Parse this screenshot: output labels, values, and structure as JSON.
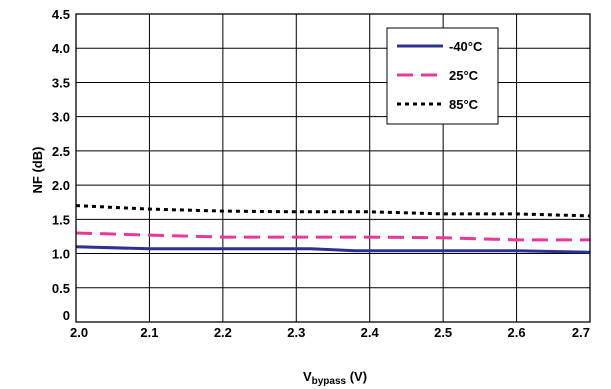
{
  "chart_data": {
    "type": "line",
    "title": "",
    "xlabel": {
      "main": "V",
      "sub": "bypass",
      "suffix": " (V)"
    },
    "ylabel": "NF (dB)",
    "xlim": [
      2.0,
      2.7
    ],
    "ylim": [
      0,
      4.5
    ],
    "x_ticks": [
      "2.0",
      "2.1",
      "2.2",
      "2.3",
      "2.4",
      "2.5",
      "2.6",
      "2.7"
    ],
    "y_ticks": [
      "0",
      "0.5",
      "1.0",
      "1.5",
      "2.0",
      "2.5",
      "3.0",
      "3.5",
      "4.0",
      "4.5"
    ],
    "grid": true,
    "legend_position": "top-right",
    "series": [
      {
        "name": "-40°C",
        "color": "#2e3192",
        "style": "solid",
        "x": [
          2.0,
          2.1,
          2.2,
          2.3,
          2.32,
          2.38,
          2.4,
          2.5,
          2.6,
          2.7
        ],
        "y": [
          1.1,
          1.07,
          1.07,
          1.07,
          1.07,
          1.04,
          1.04,
          1.04,
          1.04,
          1.02
        ]
      },
      {
        "name": "25°C",
        "color": "#e8389a",
        "style": "dashed",
        "x": [
          2.0,
          2.1,
          2.2,
          2.3,
          2.4,
          2.5,
          2.6,
          2.7
        ],
        "y": [
          1.3,
          1.27,
          1.24,
          1.24,
          1.24,
          1.23,
          1.2,
          1.2
        ]
      },
      {
        "name": "85°C",
        "color": "#000000",
        "style": "dotted",
        "x": [
          2.0,
          2.1,
          2.2,
          2.3,
          2.4,
          2.5,
          2.6,
          2.7
        ],
        "y": [
          1.7,
          1.65,
          1.62,
          1.61,
          1.61,
          1.58,
          1.58,
          1.55
        ]
      }
    ]
  }
}
